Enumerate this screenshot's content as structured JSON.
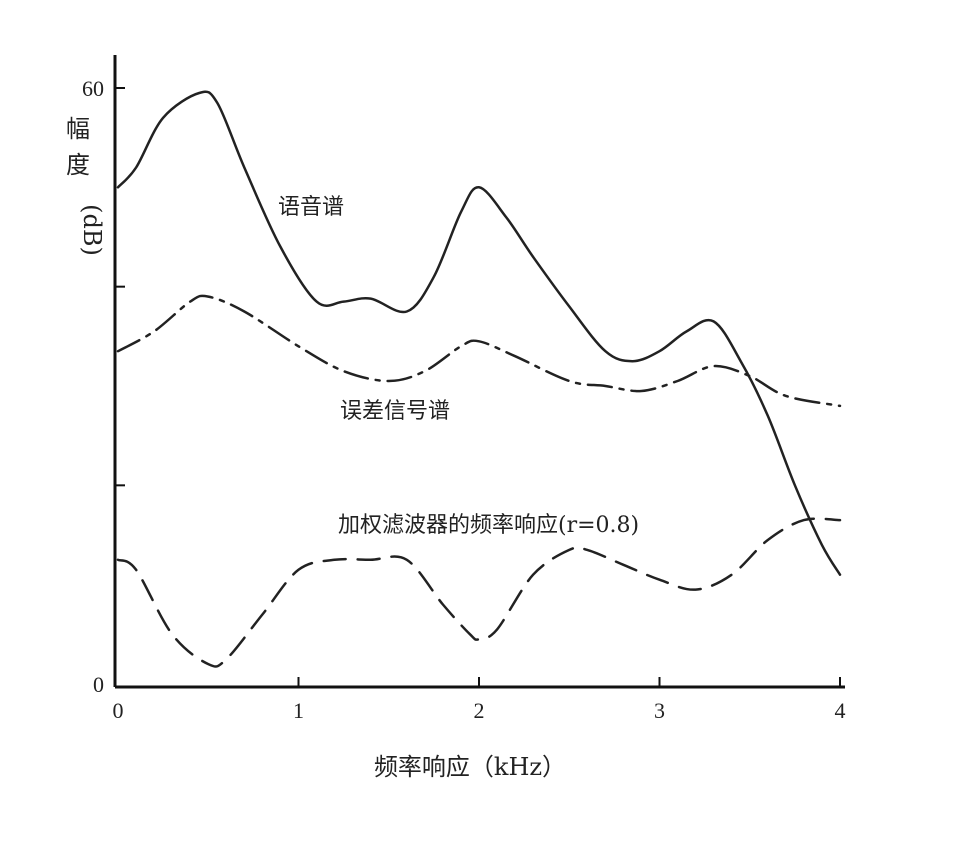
{
  "chart_data": {
    "type": "line",
    "xlabel": "频率响应（kHz）",
    "ylabel_chars": [
      "幅",
      "度"
    ],
    "ylabel_unit": "(dB)",
    "x_ticks": [
      "0",
      "1",
      "2",
      "3",
      "4"
    ],
    "y_ticks": [
      "0",
      "60"
    ],
    "xlim": [
      0,
      4
    ],
    "ylim": [
      0,
      60
    ],
    "grid": false,
    "series": [
      {
        "name": "语音谱",
        "style": "solid",
        "color": "#222222",
        "x": [
          0,
          0.1,
          0.25,
          0.45,
          0.55,
          0.7,
          0.9,
          1.1,
          1.25,
          1.4,
          1.6,
          1.75,
          1.9,
          2.0,
          2.15,
          2.3,
          2.5,
          2.7,
          2.85,
          3.0,
          3.15,
          3.3,
          3.45,
          3.6,
          3.75,
          3.9,
          4.0
        ],
        "y": [
          50,
          52,
          57,
          59.5,
          58.5,
          52,
          44,
          38.5,
          38.5,
          38.8,
          37.5,
          41,
          47.5,
          50,
          47,
          43,
          38,
          33.5,
          32.5,
          33.5,
          35.5,
          36.5,
          32.5,
          27,
          20,
          14,
          11
        ]
      },
      {
        "name": "误差信号谱",
        "style": "dashdot",
        "color": "#222222",
        "x": [
          0,
          0.2,
          0.4,
          0.5,
          0.7,
          1.0,
          1.25,
          1.5,
          1.7,
          1.9,
          2.0,
          2.2,
          2.5,
          2.7,
          2.9,
          3.1,
          3.3,
          3.5,
          3.7,
          4.0
        ],
        "y": [
          33.5,
          35.5,
          38.5,
          39,
          37.5,
          34,
          31.5,
          30.5,
          31.5,
          34,
          34.5,
          33,
          30.5,
          30,
          29.5,
          30.5,
          32,
          31,
          29,
          28
        ]
      },
      {
        "name": "加权滤波器的频率响应(r=0.8)",
        "style": "dashed",
        "color": "#222222",
        "x": [
          0,
          0.1,
          0.3,
          0.5,
          0.6,
          0.8,
          1.0,
          1.2,
          1.4,
          1.6,
          1.8,
          1.95,
          2.0,
          2.1,
          2.3,
          2.5,
          2.6,
          2.8,
          3.0,
          3.2,
          3.4,
          3.6,
          3.8,
          4.0
        ],
        "y": [
          12.5,
          11.5,
          5,
          2,
          2.5,
          7,
          11.5,
          12.5,
          12.5,
          12.5,
          8,
          5,
          4.5,
          5.5,
          11,
          13.5,
          13.5,
          12,
          10.5,
          9.5,
          11,
          14.5,
          16.5,
          16.5
        ]
      }
    ],
    "annotations": [
      {
        "target": "语音谱",
        "text": "语音谱"
      },
      {
        "target": "误差信号谱",
        "text": "误差信号谱"
      },
      {
        "target": "加权滤波器的频率响应(r=0.8)",
        "text": "加权滤波器的频率响应(r=0.8)"
      }
    ]
  }
}
